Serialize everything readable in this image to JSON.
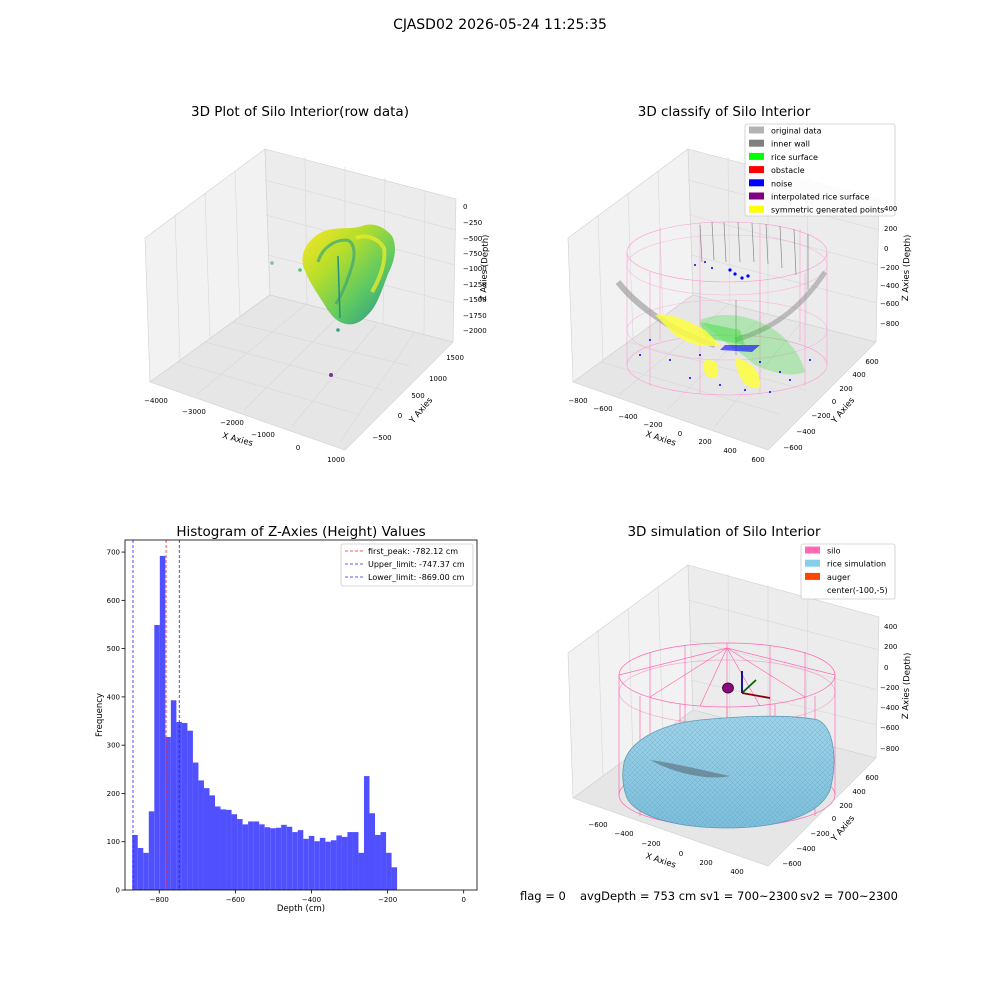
{
  "figure": {
    "suptitle": "CJASD02 2026-05-24 11:25:35",
    "footer": {
      "flag": "flag = 0",
      "avg_depth": "avgDepth = 753 cm",
      "sv1": "sv1 = 700~2300",
      "sv2": "sv2 = 700~2300"
    }
  },
  "chart_data": [
    {
      "type": "scatter",
      "projection": "3d",
      "title": "3D Plot of Silo Interior(row data)",
      "xlabel": "X Axies",
      "ylabel": "Y Axies",
      "zlabel": "Z Axies (Depth)",
      "x_ticks": [
        "−4000",
        "−3000",
        "−2000",
        "−1000",
        "0",
        "1000"
      ],
      "y_ticks": [
        "−500",
        "0",
        "500",
        "1000",
        "1500"
      ],
      "z_ticks": [
        "0",
        "−250",
        "−500",
        "−750",
        "−1000",
        "−1250",
        "−1500",
        "−1750",
        "−2000"
      ],
      "xlim": [
        -4200,
        1000
      ],
      "ylim": [
        -800,
        1700
      ],
      "zlim": [
        -2200,
        100
      ],
      "colormap": "viridis",
      "grid": true,
      "outlier_points": [
        {
          "x": -1500,
          "y": 700,
          "z": -550
        },
        {
          "x": -700,
          "y": 500,
          "z": -650
        },
        {
          "x": -400,
          "y": 200,
          "z": -1900
        },
        {
          "x": -300,
          "y": -500,
          "z": -2150
        }
      ]
    },
    {
      "type": "scatter",
      "projection": "3d",
      "title": "3D classify of Silo Interior",
      "xlabel": "X Axies",
      "ylabel": "Y Axies",
      "zlabel": "Z Axies (Depth)",
      "x_ticks": [
        "−800",
        "−600",
        "−400",
        "−200",
        "0",
        "200",
        "400",
        "600"
      ],
      "y_ticks": [
        "−600",
        "−400",
        "−200",
        "0",
        "200",
        "400",
        "600"
      ],
      "z_ticks": [
        "400",
        "200",
        "0",
        "−200",
        "−400",
        "−600",
        "−800"
      ],
      "xlim": [
        -850,
        650
      ],
      "ylim": [
        -650,
        650
      ],
      "zlim": [
        -950,
        450
      ],
      "legend_position": "upper-right",
      "legend": [
        {
          "label": "original data",
          "color": "#b3b3b3"
        },
        {
          "label": "inner wall",
          "color": "#808080"
        },
        {
          "label": "rice surface",
          "color": "#00ff00"
        },
        {
          "label": "obstacle",
          "color": "#ff0000"
        },
        {
          "label": "noise",
          "color": "#0000ff"
        },
        {
          "label": "interpolated rice surface",
          "color": "#800080"
        },
        {
          "label": "symmetric generated points",
          "color": "#ffff00"
        }
      ],
      "silo_wireframe_color": "#ff9ad5",
      "grid": true
    },
    {
      "type": "bar",
      "subtype": "histogram",
      "title": "Histogram of Z-Axies (Height) Values",
      "xlabel": "Depth (cm)",
      "ylabel": "Frequency",
      "xlim": [
        -890,
        35
      ],
      "ylim": [
        0,
        725
      ],
      "x_ticks": [
        -800,
        -600,
        -400,
        -200,
        0
      ],
      "x_tick_labels": [
        "−800",
        "−600",
        "−400",
        "−200",
        "0"
      ],
      "y_ticks": [
        0,
        100,
        200,
        300,
        400,
        500,
        600,
        700
      ],
      "bar_color": "#5050ff",
      "bin_width": 14.5,
      "bin_start": -871,
      "values": [
        114,
        87,
        77,
        163,
        549,
        692,
        317,
        393,
        348,
        346,
        330,
        264,
        227,
        211,
        196,
        173,
        167,
        166,
        157,
        147,
        136,
        142,
        142,
        136,
        130,
        128,
        129,
        135,
        131,
        120,
        124,
        106,
        112,
        101,
        108,
        100,
        103,
        113,
        110,
        120,
        120,
        77,
        236,
        159,
        114,
        120,
        77,
        47
      ],
      "vlines": [
        {
          "label": "first_peak: -782.12 cm",
          "x": -782.12,
          "color": "#ff2020"
        },
        {
          "label": "Upper_limit: -747.37 cm",
          "x": -747.37,
          "color": "#2020ff"
        },
        {
          "label": "Lower_limit: -869.00 cm",
          "x": -869.0,
          "color": "#2020ff"
        }
      ],
      "legend_position": "upper-right"
    },
    {
      "type": "scatter",
      "projection": "3d",
      "title": "3D simulation of Silo Interior",
      "xlabel": "X Axies",
      "ylabel": "Y Axies",
      "zlabel": "Z Axies (Depth)",
      "x_ticks": [
        "−600",
        "−400",
        "−200",
        "0",
        "200",
        "400"
      ],
      "y_ticks": [
        "−600",
        "−400",
        "−200",
        "0",
        "200",
        "400",
        "600"
      ],
      "z_ticks": [
        "400",
        "200",
        "0",
        "−200",
        "−400",
        "−600",
        "−800"
      ],
      "xlim": [
        -700,
        500
      ],
      "ylim": [
        -650,
        650
      ],
      "zlim": [
        -950,
        450
      ],
      "legend_position": "upper-right",
      "legend": [
        {
          "label": "silo",
          "color": "#ff69b4"
        },
        {
          "label": "rice simulation",
          "color": "#87ceeb"
        },
        {
          "label": "auger",
          "color": "#ff4500"
        },
        {
          "label": "center(-100,-5)",
          "color": ""
        }
      ],
      "grid": true
    }
  ]
}
